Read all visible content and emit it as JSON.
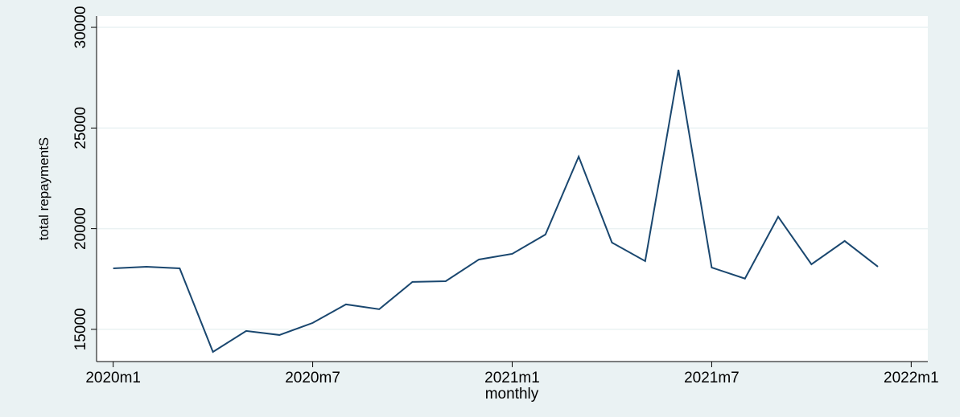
{
  "chart_data": {
    "type": "line",
    "x": [
      0,
      1,
      2,
      3,
      4,
      5,
      6,
      7,
      8,
      9,
      10,
      11,
      12,
      13,
      14,
      15,
      16,
      17,
      18,
      19,
      20,
      21,
      22,
      23
    ],
    "series": [
      {
        "name": "total repaymentS",
        "color": "#1a476f",
        "values": [
          18030,
          18110,
          18030,
          13880,
          14920,
          14720,
          15320,
          16240,
          16000,
          17355,
          17390,
          18470,
          18750,
          19710,
          23580,
          19310,
          18390,
          27890,
          18070,
          17520,
          20590,
          18230,
          19390,
          18110
        ]
      }
    ],
    "xlim": [
      -0.5,
      24.5
    ],
    "xticks": [
      {
        "value": 0,
        "label": "2020m1"
      },
      {
        "value": 6,
        "label": "2020m7"
      },
      {
        "value": 12,
        "label": "2021m1"
      },
      {
        "value": 18,
        "label": "2021m7"
      },
      {
        "value": 24,
        "label": "2022m1"
      }
    ],
    "ylim": [
      13400,
      30560
    ],
    "yticks": [
      15000,
      20000,
      25000,
      30000
    ],
    "xlabel": "monthly",
    "ylabel": "total repaymentS",
    "grid": true
  }
}
